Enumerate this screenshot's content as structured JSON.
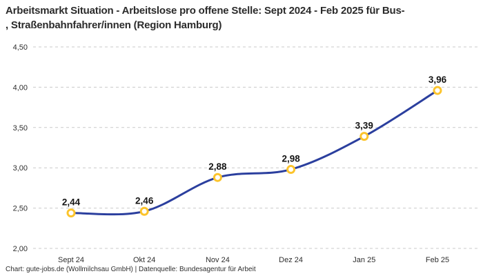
{
  "title_lines": [
    "Arbeitsmarkt Situation - Arbeitslose pro offene Stelle: Sept 2024 - Feb 2025 für Bus-",
    ", Straßenbahnfahrer/innen (Region Hamburg)"
  ],
  "footer": "Chart: gute-jobs.de (Wollmilchsau GmbH) | Datenquelle: Bundesagentur für Arbeit",
  "chart_data": {
    "type": "line",
    "title": "Arbeitsmarkt Situation - Arbeitslose pro offene Stelle: Sept 2024 - Feb 2025 für Bus-, Straßenbahnfahrer/innen (Region Hamburg)",
    "categories": [
      "Sept 24",
      "Okt 24",
      "Nov 24",
      "Dez 24",
      "Jan 25",
      "Feb 25"
    ],
    "values": [
      2.44,
      2.46,
      2.88,
      2.98,
      3.39,
      3.96
    ],
    "value_labels": [
      "2,44",
      "2,46",
      "2,88",
      "2,98",
      "3,39",
      "3,96"
    ],
    "y_ticks": [
      {
        "value": 2.0,
        "label": "2,00"
      },
      {
        "value": 2.5,
        "label": "2,50"
      },
      {
        "value": 3.0,
        "label": "3,00"
      },
      {
        "value": 3.5,
        "label": "3,50"
      },
      {
        "value": 4.0,
        "label": "4,00"
      },
      {
        "value": 4.5,
        "label": "4,50"
      }
    ],
    "ylim": [
      2.0,
      4.5
    ],
    "grid": "horizontal-dashed",
    "legend": "none",
    "colors": {
      "line": "#2B3F9E",
      "marker_ring": "#FCC42C",
      "marker_fill": "#ffffff",
      "gridline": "#c9c9c9",
      "axis_text": "#2e2e2e",
      "value_text": "#141414"
    }
  }
}
